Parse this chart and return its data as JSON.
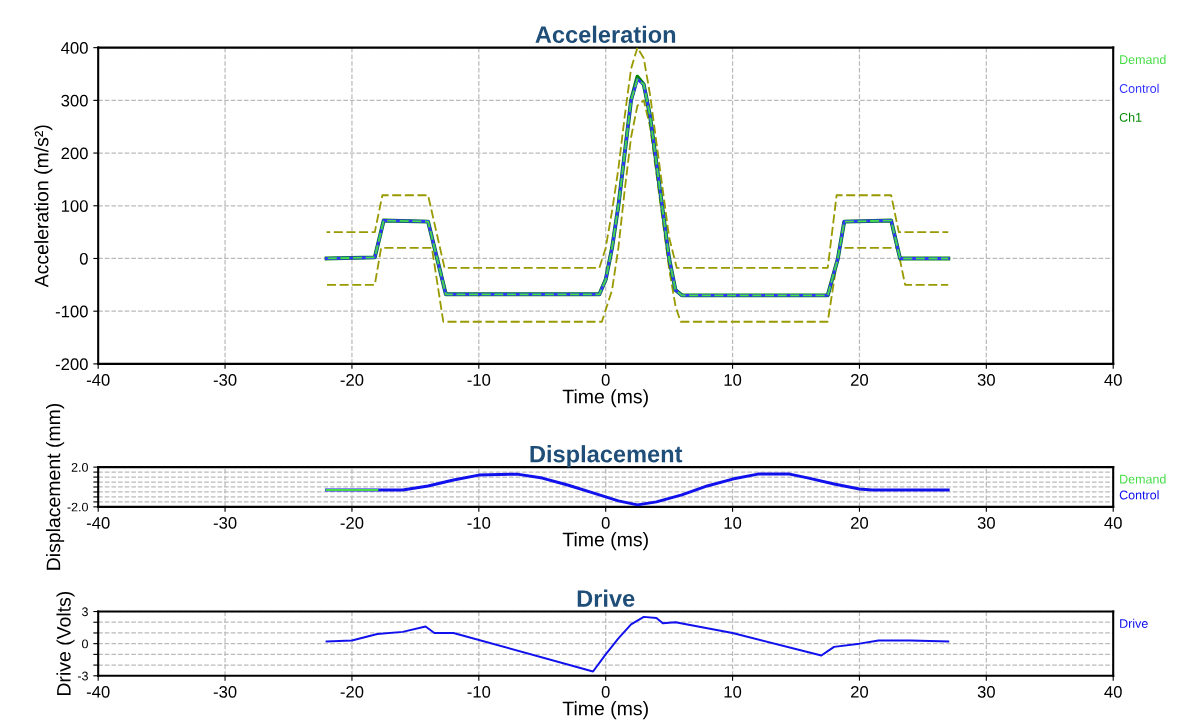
{
  "chart_data": [
    {
      "type": "line",
      "title": "Acceleration",
      "xlabel": "Time (ms)",
      "ylabel": "Acceleration (m/s²)",
      "xlim": [
        -40,
        40
      ],
      "xticks": [
        -40,
        -30,
        -20,
        -10,
        0,
        10,
        20,
        30,
        40
      ],
      "ylim": [
        -200,
        400
      ],
      "yticks": [
        -200,
        -100,
        0,
        100,
        200,
        300,
        400
      ],
      "grid": true,
      "legend": "right",
      "series": [
        {
          "name": "Demand",
          "color": "#44dd44",
          "line_style": "dashed",
          "x": [
            -22,
            -18.2,
            -17.5,
            -14,
            -12.6,
            -0.5,
            0,
            0.5,
            1,
            1.5,
            2,
            2.5,
            3,
            3.5,
            4,
            4.5,
            5,
            5.5,
            6,
            17.5,
            18.3,
            18.8,
            22.5,
            23.2,
            27
          ],
          "values": [
            0,
            2,
            72,
            70,
            -68,
            -68,
            -40,
            20,
            100,
            200,
            300,
            340,
            330,
            270,
            180,
            90,
            0,
            -60,
            -70,
            -70,
            0,
            70,
            72,
            0,
            0
          ]
        },
        {
          "name": "Control",
          "color": "#3333ff",
          "line_style": "solid",
          "x": [
            -22,
            -18.2,
            -17.5,
            -14,
            -12.6,
            -0.5,
            0,
            0.5,
            1,
            1.5,
            2,
            2.5,
            3,
            3.5,
            4,
            4.5,
            5,
            5.5,
            6,
            17.5,
            18.3,
            18.8,
            22.5,
            23.2,
            27
          ],
          "values": [
            0,
            2,
            72,
            70,
            -68,
            -68,
            -40,
            20,
            100,
            200,
            300,
            340,
            330,
            270,
            180,
            90,
            0,
            -60,
            -70,
            -70,
            0,
            70,
            72,
            0,
            0
          ]
        },
        {
          "name": "Ch1",
          "color": "#008800",
          "line_style": "solid",
          "x": [
            -22,
            -18.2,
            -17.5,
            -14,
            -12.6,
            -0.5,
            0,
            0.5,
            1,
            1.5,
            2,
            2.5,
            3,
            3.5,
            4,
            4.5,
            5,
            5.5,
            6,
            17.5,
            18.3,
            18.8,
            22.5,
            23.2,
            27
          ],
          "values": [
            0,
            2,
            72,
            70,
            -68,
            -68,
            -40,
            20,
            100,
            200,
            300,
            345,
            330,
            270,
            180,
            90,
            0,
            -60,
            -70,
            -70,
            0,
            70,
            72,
            0,
            0
          ]
        },
        {
          "color": "#999900",
          "line_style": "dashed",
          "x": [
            -22,
            -18.2,
            -17.6,
            -14,
            -12.7,
            -0.5,
            0,
            0.5,
            1,
            1.5,
            2,
            2.5,
            3,
            3.5,
            4,
            4.5,
            5,
            5.6,
            17.5,
            18.2,
            22.5,
            23.1,
            27
          ],
          "values": [
            50,
            50,
            120,
            120,
            -18,
            -18,
            20,
            90,
            170,
            270,
            360,
            400,
            380,
            310,
            220,
            130,
            40,
            -18,
            -18,
            120,
            120,
            50,
            50
          ]
        },
        {
          "color": "#999900",
          "line_style": "dashed",
          "x": [
            -22,
            -18.2,
            -17.7,
            -13.7,
            -12.8,
            -0.3,
            0.5,
            1,
            1.5,
            2,
            2.5,
            3,
            3.5,
            4,
            4.5,
            5,
            5.5,
            5.9,
            17.5,
            18.4,
            23,
            23.6,
            27
          ],
          "values": [
            -50,
            -50,
            20,
            20,
            -120,
            -120,
            -60,
            20,
            130,
            230,
            290,
            300,
            250,
            160,
            70,
            -20,
            -90,
            -120,
            -120,
            20,
            20,
            -50,
            -50
          ]
        }
      ]
    },
    {
      "type": "line",
      "title": "Displacement",
      "xlabel": "Time (ms)",
      "ylabel": "Displacement (mm)",
      "xlim": [
        -40,
        40
      ],
      "xticks": [
        -40,
        -30,
        -20,
        -10,
        0,
        10,
        20,
        30,
        40
      ],
      "ylim": [
        -2,
        2
      ],
      "yticks": [
        {
          "value": -2,
          "label": "-2.0"
        },
        {
          "value": -1.5,
          "label": null
        },
        {
          "value": -1,
          "label": null
        },
        {
          "value": -0.5,
          "label": null
        },
        {
          "value": 0,
          "label": null
        },
        {
          "value": 0.5,
          "label": null
        },
        {
          "value": 1,
          "label": null
        },
        {
          "value": 1.5,
          "label": null
        },
        {
          "value": 2,
          "label": "2.0"
        }
      ],
      "grid": true,
      "legend": "right",
      "series": [
        {
          "name": "Demand",
          "color": "#44dd44",
          "line_style": "solid",
          "x": [
            -22,
            -18
          ],
          "values": [
            -0.3,
            -0.3
          ]
        },
        {
          "name": "Control",
          "color": "#1111ee",
          "line_style": "solid",
          "x": [
            -22,
            -16,
            -14,
            -12,
            -10,
            -7,
            -5,
            -3,
            -1,
            1,
            2.5,
            4,
            6,
            8,
            10,
            12,
            14.5,
            16,
            18,
            20,
            21,
            27
          ],
          "values": [
            -0.3,
            -0.3,
            0.1,
            0.7,
            1.2,
            1.3,
            0.9,
            0.2,
            -0.6,
            -1.4,
            -1.8,
            -1.5,
            -0.8,
            0.1,
            0.8,
            1.3,
            1.3,
            0.9,
            0.3,
            -0.2,
            -0.3,
            -0.3
          ]
        }
      ]
    },
    {
      "type": "line",
      "title": "Drive",
      "xlabel": "Time (ms)",
      "ylabel": "Drive (Volts)",
      "xlim": [
        -40,
        40
      ],
      "xticks": [
        -40,
        -30,
        -20,
        -10,
        0,
        10,
        20,
        30,
        40
      ],
      "ylim": [
        -3,
        3
      ],
      "yticks": [
        {
          "value": -3,
          "label": "-3"
        },
        {
          "value": -2,
          "label": null
        },
        {
          "value": -1,
          "label": null
        },
        {
          "value": 0,
          "label": "0"
        },
        {
          "value": 1,
          "label": null
        },
        {
          "value": 2,
          "label": null
        },
        {
          "value": 3,
          "label": "3"
        }
      ],
      "grid": true,
      "legend": "right",
      "series": [
        {
          "name": "Drive",
          "color": "#1111ee",
          "line_style": "solid",
          "x": [
            -22,
            -20,
            -18,
            -16,
            -14.2,
            -13.5,
            -12,
            -1,
            0,
            1,
            2,
            3,
            4,
            4.5,
            5.5,
            10,
            17,
            17.5,
            18,
            20,
            21.5,
            24,
            27
          ],
          "values": [
            0.2,
            0.3,
            0.9,
            1.1,
            1.6,
            1.0,
            1.0,
            -2.6,
            -1.0,
            0.5,
            1.8,
            2.5,
            2.4,
            1.9,
            2.0,
            1.0,
            -1.1,
            -0.7,
            -0.3,
            0.0,
            0.3,
            0.3,
            0.2
          ]
        }
      ]
    }
  ]
}
